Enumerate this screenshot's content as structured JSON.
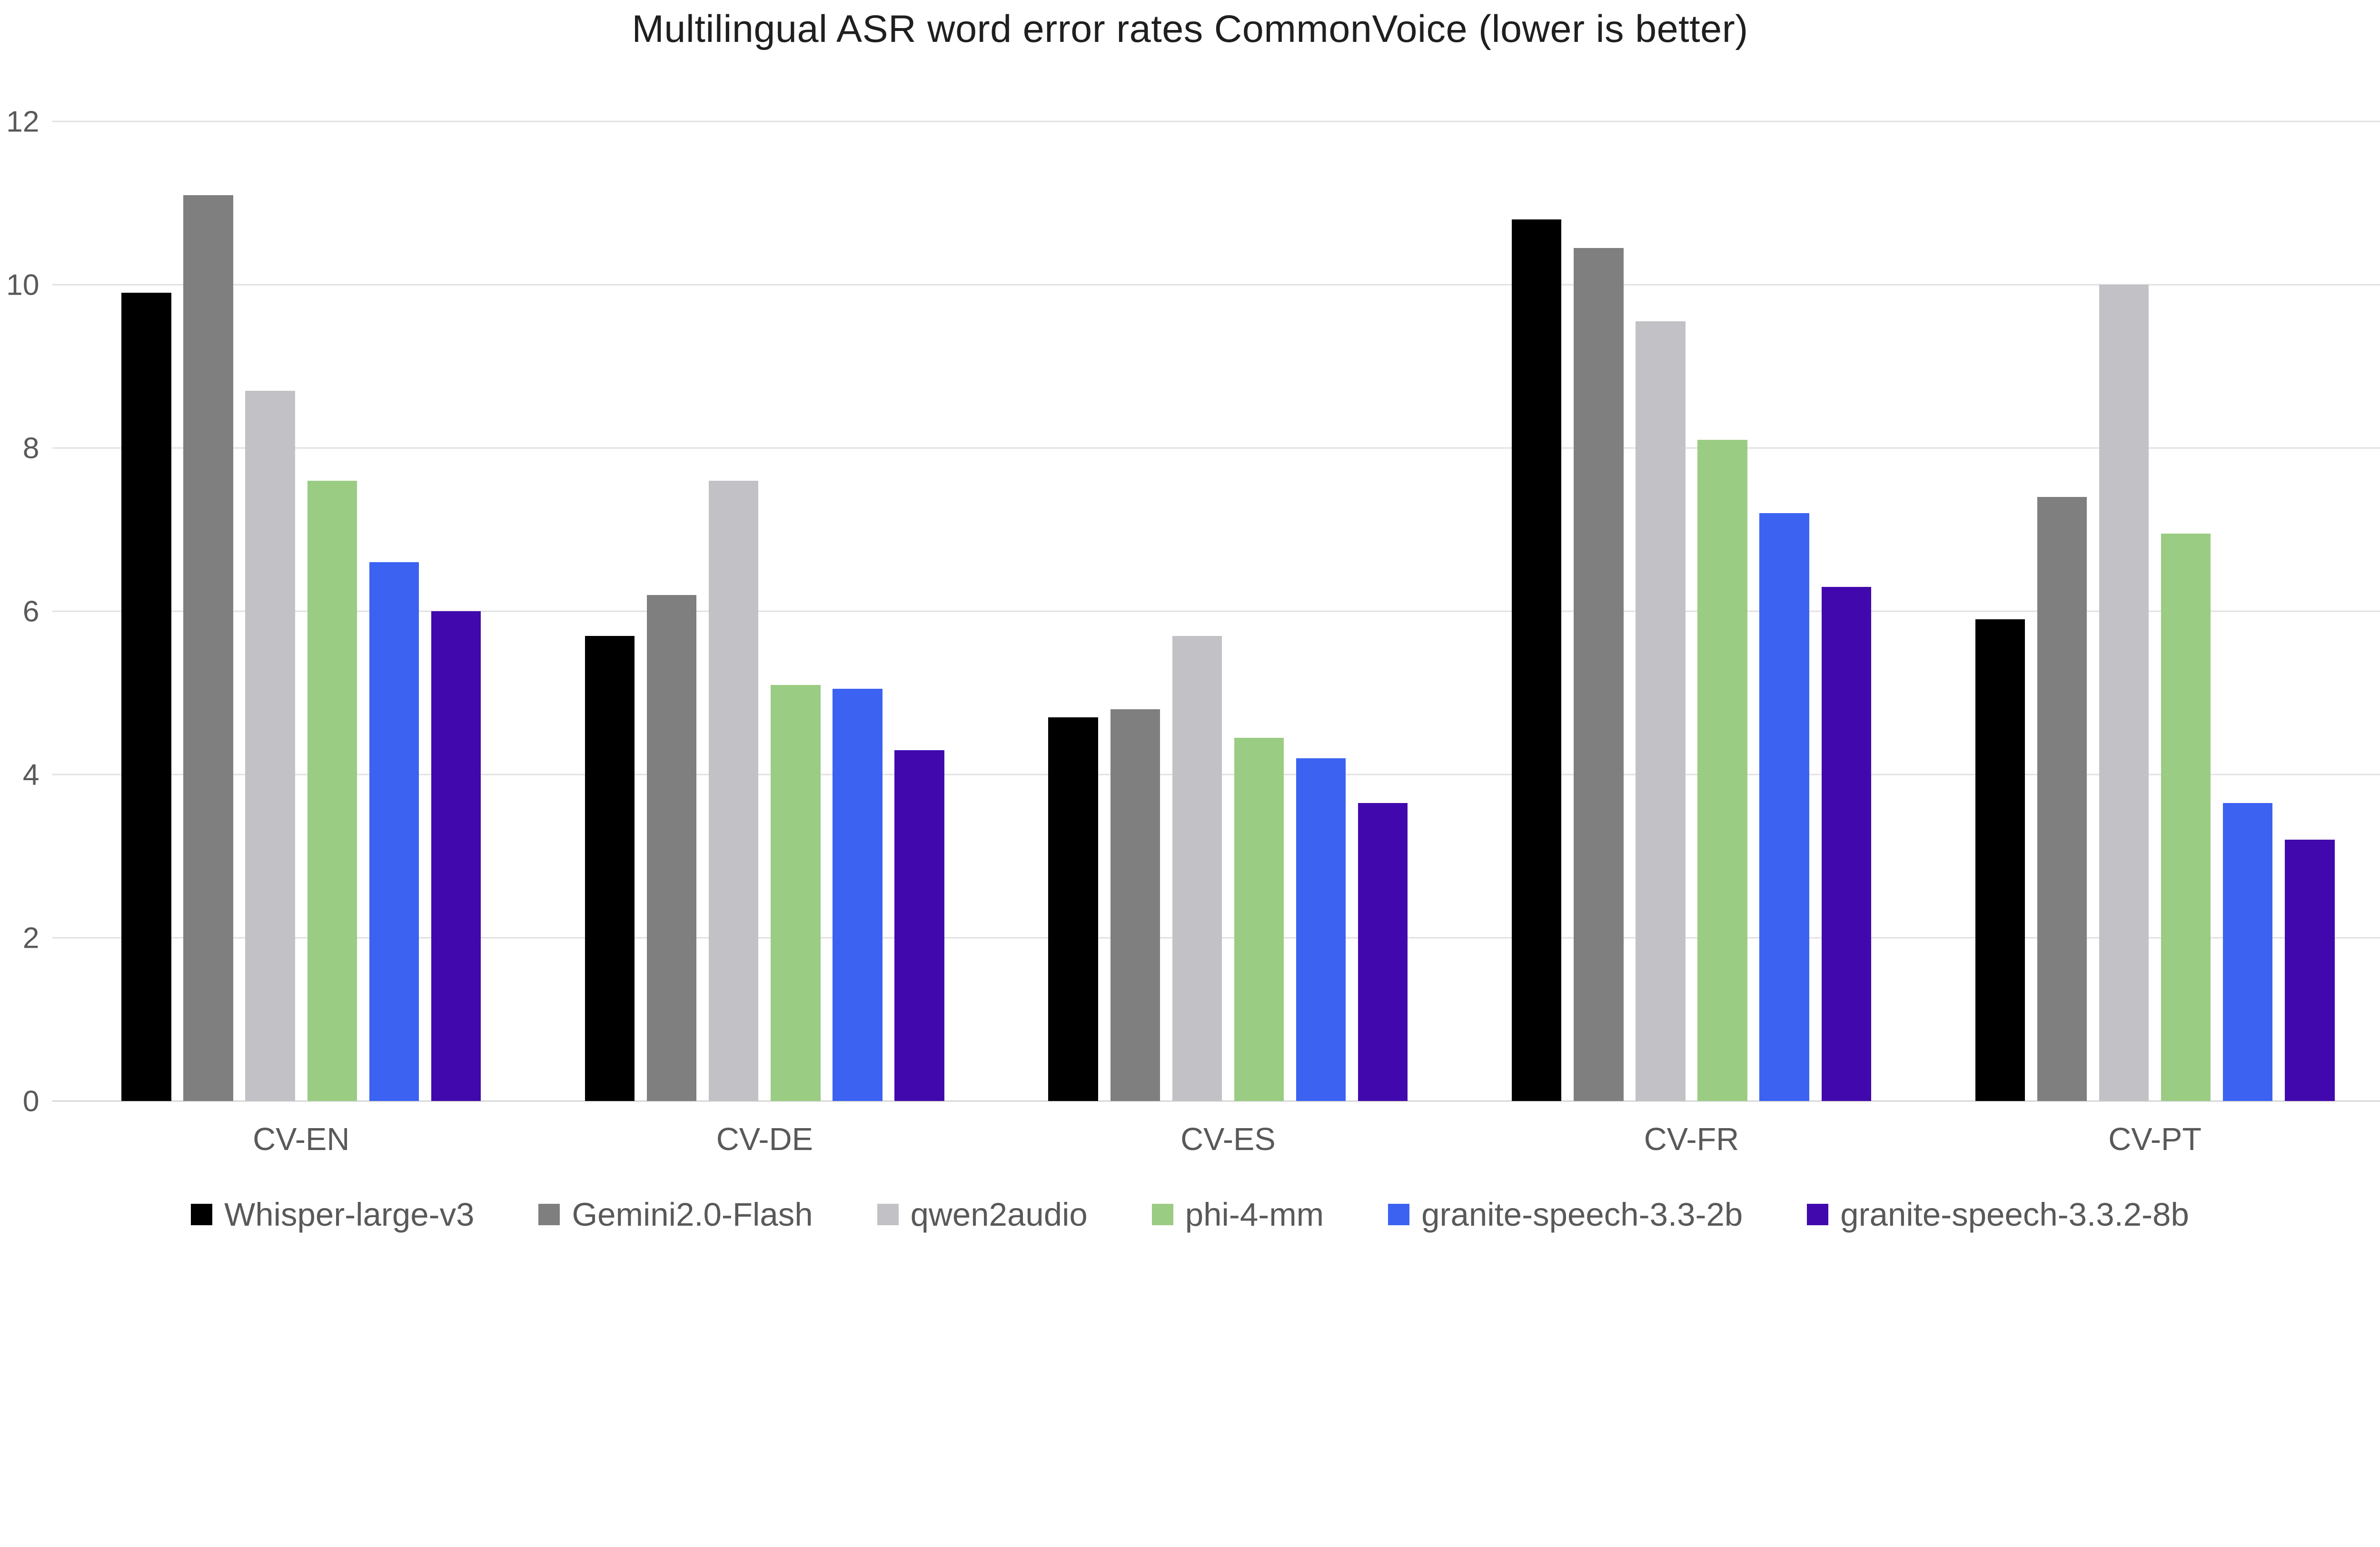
{
  "title": "Multilingual ASR word error rates CommonVoice (lower is better)",
  "chart_data": {
    "type": "bar",
    "title": "Multilingual ASR word error rates CommonVoice (lower is better)",
    "categories": [
      "CV-EN",
      "CV-DE",
      "CV-ES",
      "CV-FR",
      "CV-PT"
    ],
    "series": [
      {
        "name": "Whisper-large-v3",
        "color": "#000000",
        "values": [
          9.9,
          5.7,
          4.7,
          10.8,
          5.9
        ]
      },
      {
        "name": "Gemini2.0-Flash",
        "color": "#7f7f7f",
        "values": [
          11.1,
          6.2,
          4.8,
          10.45,
          7.4
        ]
      },
      {
        "name": "qwen2audio",
        "color": "#c2c2c6",
        "values": [
          8.7,
          7.6,
          5.7,
          9.55,
          10.0
        ]
      },
      {
        "name": "phi-4-mm",
        "color": "#9acc83",
        "values": [
          7.6,
          5.1,
          4.45,
          8.1,
          6.95
        ]
      },
      {
        "name": "granite-speech-3.3-2b",
        "color": "#3c62f2",
        "values": [
          6.6,
          5.05,
          4.2,
          7.2,
          3.65
        ]
      },
      {
        "name": "granite-speech-3.3.2-8b",
        "color": "#4109ad",
        "values": [
          6.0,
          4.3,
          3.65,
          6.3,
          3.2
        ]
      }
    ],
    "ylim": [
      0,
      12
    ],
    "yticks": [
      0,
      2,
      4,
      6,
      8,
      10,
      12
    ],
    "grid": true,
    "legend_position": "bottom"
  },
  "colors": {
    "background": "#ffffff",
    "title_text": "#1f1f1f",
    "axis_text": "#595959",
    "gridline": "#e1e1e1",
    "baseline": "#d6d6d6"
  }
}
